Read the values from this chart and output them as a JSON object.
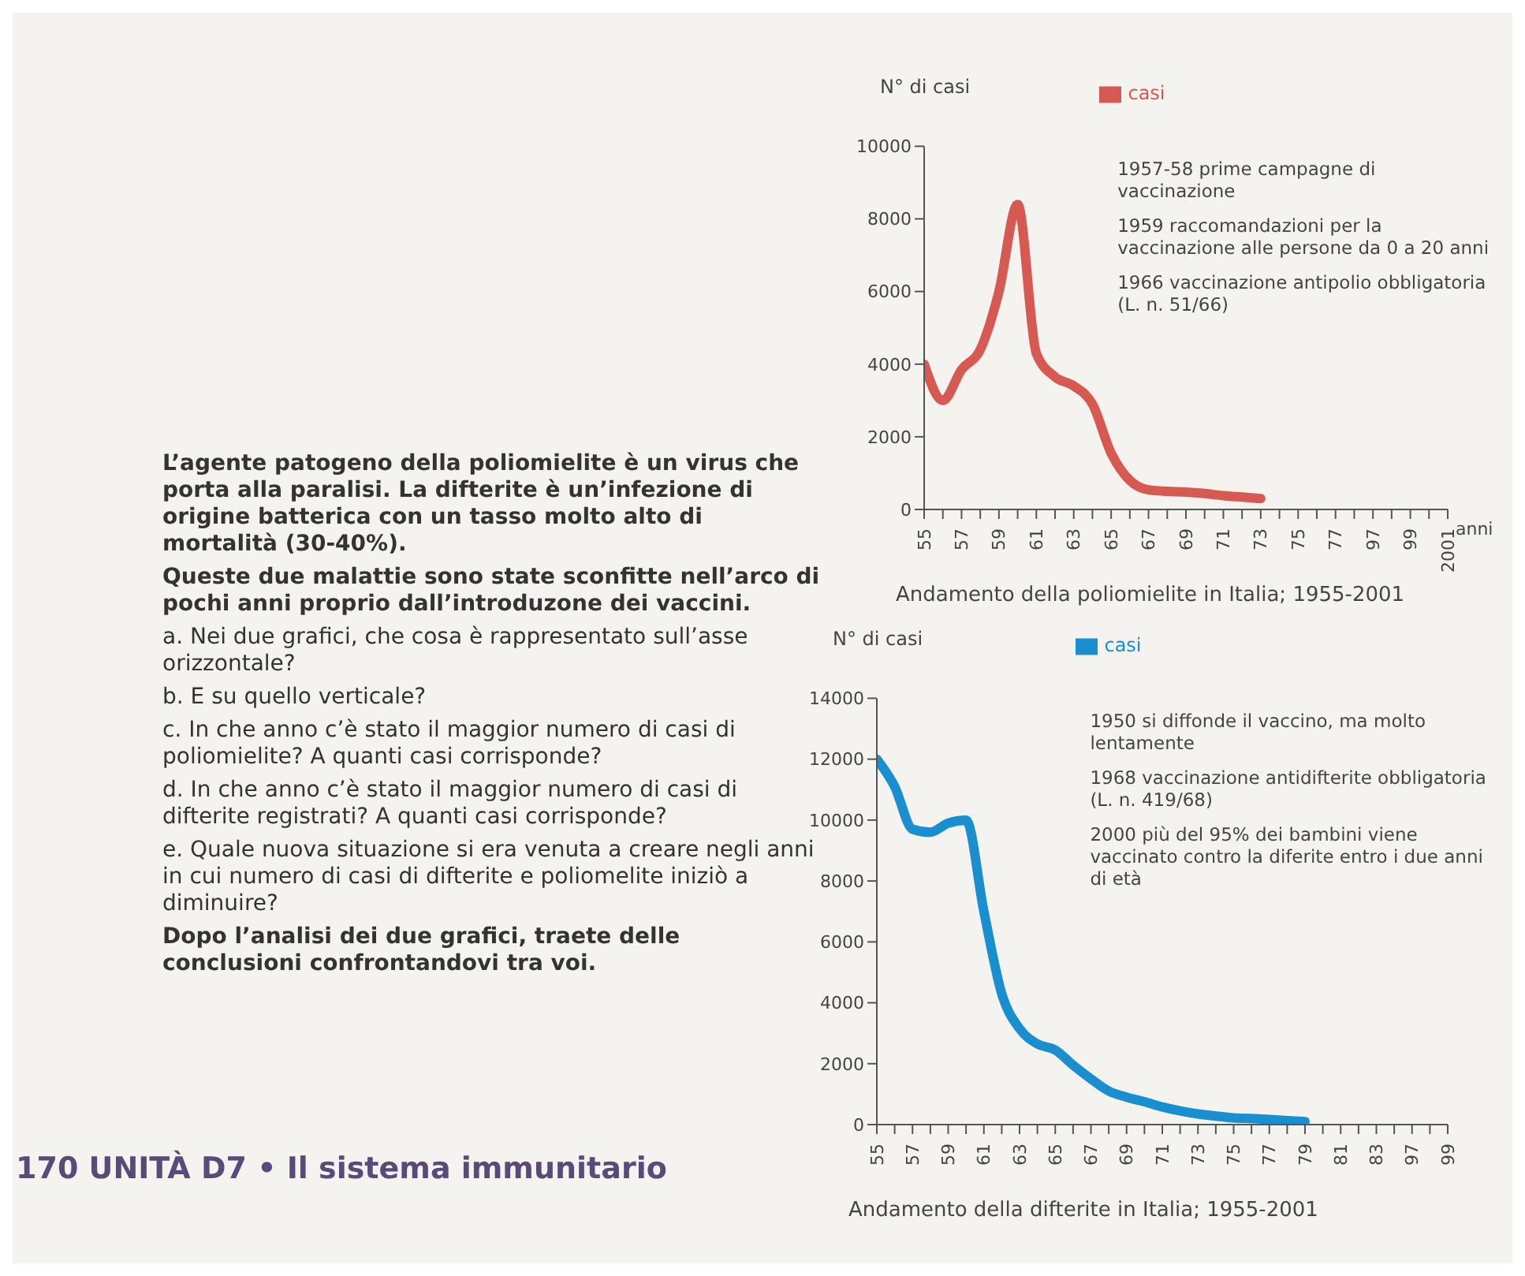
{
  "chart_data": [
    {
      "type": "other",
      "annotations": [
        "L’agente patogeno della poliomielite è un virus che porta alla paralisi. La difterite è un’infezione di origine batterica con un tasso molto alto di mortalità (30-40%).",
        "Queste due malattie sono state sconfitte nell’arco di pochi anni proprio dall’introduzone dei vaccini.",
        "a. Nei due grafici, che cosa è rappresentato sull’asse orizzontale?",
        "b. E su quello verticale?",
        "c. In che anno c’è stato il maggior numero di casi di poliomielite? A quanti casi corrisponde?",
        "d. In che anno c’è stato il maggior numero di casi di difterite registrati? A quanti casi corrisponde?",
        "e. Quale nuova situazione si era venuta a creare negli anni in cui numero di casi di difterite e poliomelite iniziò a diminuire?",
        "Dopo l’analisi dei due grafici, traete delle conclusioni confrontandovi tra voi.",
        "170 UNITÀ D7 • Il sistema immunitario"
      ]
    },
    {
      "type": "line",
      "title": "Andamento della poliomielite in Italia; 1955-2001",
      "ylabel": "N° di casi",
      "xlabel": "anni",
      "categories": [
        "55",
        null,
        "57",
        null,
        "59",
        null,
        "61",
        null,
        "63",
        null,
        "65",
        null,
        "67",
        null,
        "69",
        null,
        "71",
        null,
        "73",
        null,
        "75",
        null,
        "77",
        null,
        "97",
        null,
        "99",
        null,
        "2001"
      ],
      "series": [
        {
          "name": "casi",
          "color": "#d65a52",
          "values": [
            4000,
            3000,
            3850,
            4400,
            6000,
            8400,
            4300,
            3650,
            3400,
            2900,
            1550,
            800,
            540,
            500,
            480,
            440,
            380,
            340,
            300,
            null,
            null,
            null,
            null,
            null,
            null,
            null,
            null,
            null,
            null
          ]
        }
      ],
      "ylim": [
        0,
        10000
      ],
      "yticks": [
        0,
        2000,
        4000,
        6000,
        8000,
        10000
      ],
      "legend": "top",
      "grid": false,
      "marker": "none",
      "annotations": [
        "1957-58 prime campagne di vaccinazione",
        "1959 raccomandazioni per la vaccinazione alle persone da 0 a 20 anni",
        "1966 vaccinazione antipolio obbligatoria (L. n. 51/66)"
      ]
    },
    {
      "type": "line",
      "title": "Andamento della difterite in Italia; 1955-2001",
      "ylabel": "N° di casi",
      "categories": [
        "55",
        null,
        "57",
        null,
        "59",
        null,
        "61",
        null,
        "63",
        null,
        "65",
        null,
        "67",
        null,
        "69",
        null,
        "71",
        null,
        "73",
        null,
        "75",
        null,
        "77",
        null,
        "79",
        null,
        "81",
        null,
        "83",
        null,
        "97",
        null,
        "99"
      ],
      "series": [
        {
          "name": "casi",
          "color": "#1a8fd0",
          "values": [
            12000,
            11100,
            9700,
            9600,
            9900,
            10000,
            7000,
            4300,
            3150,
            2650,
            2450,
            1950,
            1500,
            1100,
            900,
            750,
            580,
            450,
            350,
            280,
            220,
            200,
            170,
            130,
            100,
            null,
            null,
            null,
            null,
            null,
            null,
            null,
            null
          ]
        }
      ],
      "ylim": [
        0,
        14000
      ],
      "yticks": [
        0,
        2000,
        4000,
        6000,
        8000,
        10000,
        12000,
        14000
      ],
      "legend": "top",
      "grid": false,
      "marker": "none",
      "annotations": [
        "1950 si diffonde il vaccino, ma molto lentamente",
        "1968 vaccinazione antidifterite obbligatoria (L. n. 419/68)",
        "2000 più del 95% dei bambini viene vaccinato contro la diferite entro i due anni di età"
      ]
    }
  ]
}
